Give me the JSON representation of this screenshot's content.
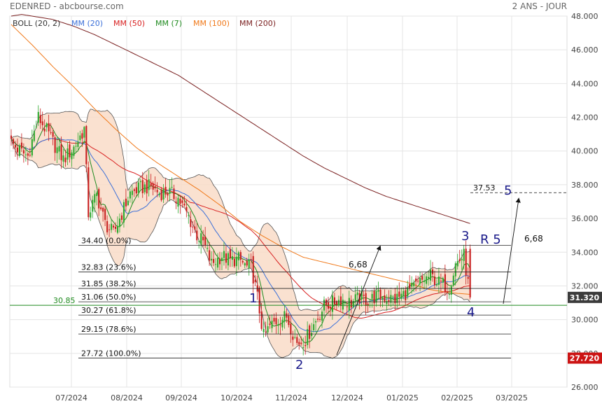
{
  "header": {
    "title": "EDENRED - abcbourse.com",
    "period": "2 ANS - JOUR"
  },
  "legend": [
    {
      "label": "BOLL (20, 2)",
      "color": "#333333"
    },
    {
      "label": "MM (20)",
      "color": "#3a6fd8"
    },
    {
      "label": "MM (50)",
      "color": "#d82020"
    },
    {
      "label": "MM (7)",
      "color": "#1f8a1f"
    },
    {
      "label": "MM (100)",
      "color": "#f07818"
    },
    {
      "label": "MM (200)",
      "color": "#7a2020"
    }
  ],
  "colors": {
    "up": "#2ea82e",
    "down": "#c81e1e",
    "boll_fill": "#f9dcc8",
    "boll_line": "#555555",
    "mm20": "#3a6fd8",
    "mm50": "#d82020",
    "mm7": "#1f8a1f",
    "mm100": "#f07818",
    "mm200": "#7a2020",
    "support": "#1f8a1f",
    "annotation": "#1a1a8a"
  },
  "chart_data": {
    "type": "candlestick",
    "y_axis": {
      "min": 26,
      "max": 48,
      "ticks": [
        "48.000",
        "46.000",
        "44.000",
        "42.000",
        "40.000",
        "38.000",
        "36.000",
        "34.000",
        "32.000",
        "30.000",
        "28.000",
        "26.000"
      ]
    },
    "x_axis": {
      "labels": [
        "07/2024",
        "08/2024",
        "09/2024",
        "10/2024",
        "11/2024",
        "12/2024",
        "01/2025",
        "02/2025",
        "03/2025"
      ]
    },
    "last_price": {
      "value": 31.32,
      "label": "31.320"
    },
    "low_marker": {
      "value": 27.72,
      "label": "27.720"
    },
    "support_line": {
      "value": 30.85,
      "label": "30.85"
    },
    "fibonacci": [
      {
        "price": 34.4,
        "label": "34.40 (0.0%)"
      },
      {
        "price": 32.83,
        "label": "32.83 (23.6%)"
      },
      {
        "price": 31.85,
        "label": "31.85 (38.2%)"
      },
      {
        "price": 31.06,
        "label": "31.06 (50.0%)"
      },
      {
        "price": 30.27,
        "label": "30.27 (61.8%)"
      },
      {
        "price": 29.15,
        "label": "29.15 (78.6%)"
      },
      {
        "price": 27.72,
        "label": "27.72 (100.0%)"
      }
    ],
    "target": {
      "price": 37.53,
      "label": "37.53",
      "wave": "5"
    },
    "wave_labels": [
      "1",
      "2",
      "3",
      "4",
      "5"
    ],
    "r5_label": "R 5",
    "move_labels": [
      "6,68",
      "6,68"
    ],
    "waypoints": {
      "close": [
        [
          0,
          40.5
        ],
        [
          4,
          40.0
        ],
        [
          8,
          39.7
        ],
        [
          13,
          42.0
        ],
        [
          17,
          41.2
        ],
        [
          21,
          40.3
        ],
        [
          25,
          39.5
        ],
        [
          30,
          40.2
        ],
        [
          35,
          41.3
        ],
        [
          37,
          36.3
        ],
        [
          41,
          37.4
        ],
        [
          45,
          35.7
        ],
        [
          49,
          35.1
        ],
        [
          53,
          36.3
        ],
        [
          57,
          37.5
        ],
        [
          62,
          37.8
        ],
        [
          67,
          37.9
        ],
        [
          71,
          37.5
        ],
        [
          75,
          37.6
        ],
        [
          80,
          37.2
        ],
        [
          85,
          36.1
        ],
        [
          89,
          35.0
        ],
        [
          92,
          34.6
        ],
        [
          96,
          33.3
        ],
        [
          101,
          33.8
        ],
        [
          105,
          33.5
        ],
        [
          109,
          33.6
        ],
        [
          113,
          33.1
        ],
        [
          115,
          33.2
        ],
        [
          118,
          31.3
        ],
        [
          121,
          29.0
        ],
        [
          124,
          29.6
        ],
        [
          128,
          30.0
        ],
        [
          132,
          30.2
        ],
        [
          137,
          28.6
        ],
        [
          141,
          28.8
        ],
        [
          145,
          29.7
        ],
        [
          150,
          30.8
        ],
        [
          154,
          31.0
        ],
        [
          158,
          31.2
        ],
        [
          163,
          31.0
        ],
        [
          167,
          31.3
        ],
        [
          171,
          31.1
        ],
        [
          175,
          31.4
        ],
        [
          180,
          31.3
        ],
        [
          184,
          31.2
        ],
        [
          188,
          31.5
        ],
        [
          192,
          31.8
        ],
        [
          197,
          32.3
        ],
        [
          201,
          32.6
        ],
        [
          205,
          32.2
        ],
        [
          210,
          31.9
        ],
        [
          213,
          33.3
        ],
        [
          217,
          33.8
        ],
        [
          220,
          31.3
        ]
      ],
      "mm200": [
        [
          0,
          48.0
        ],
        [
          5,
          48.1
        ],
        [
          10,
          48.0
        ],
        [
          20,
          47.8
        ],
        [
          30,
          47.4
        ],
        [
          40,
          46.9
        ],
        [
          50,
          46.3
        ],
        [
          60,
          45.7
        ],
        [
          70,
          45.1
        ],
        [
          80,
          44.5
        ],
        [
          90,
          43.7
        ],
        [
          100,
          42.9
        ],
        [
          110,
          42.1
        ],
        [
          120,
          41.3
        ],
        [
          130,
          40.5
        ],
        [
          140,
          39.7
        ],
        [
          150,
          39.0
        ],
        [
          160,
          38.4
        ],
        [
          170,
          37.8
        ],
        [
          180,
          37.3
        ],
        [
          190,
          36.9
        ],
        [
          200,
          36.5
        ],
        [
          210,
          36.1
        ],
        [
          220,
          35.7
        ]
      ],
      "mm100": [
        [
          0,
          47.5
        ],
        [
          10,
          46.3
        ],
        [
          20,
          45.0
        ],
        [
          30,
          43.8
        ],
        [
          40,
          42.5
        ],
        [
          50,
          41.3
        ],
        [
          60,
          40.2
        ],
        [
          70,
          39.3
        ],
        [
          80,
          38.5
        ],
        [
          90,
          37.7
        ],
        [
          100,
          36.8
        ],
        [
          110,
          35.8
        ],
        [
          120,
          35.0
        ],
        [
          130,
          34.3
        ],
        [
          140,
          33.7
        ],
        [
          150,
          33.4
        ],
        [
          160,
          33.1
        ],
        [
          170,
          32.8
        ],
        [
          180,
          32.5
        ],
        [
          190,
          32.2
        ],
        [
          200,
          31.8
        ],
        [
          210,
          31.6
        ],
        [
          220,
          31.5
        ]
      ]
    }
  }
}
